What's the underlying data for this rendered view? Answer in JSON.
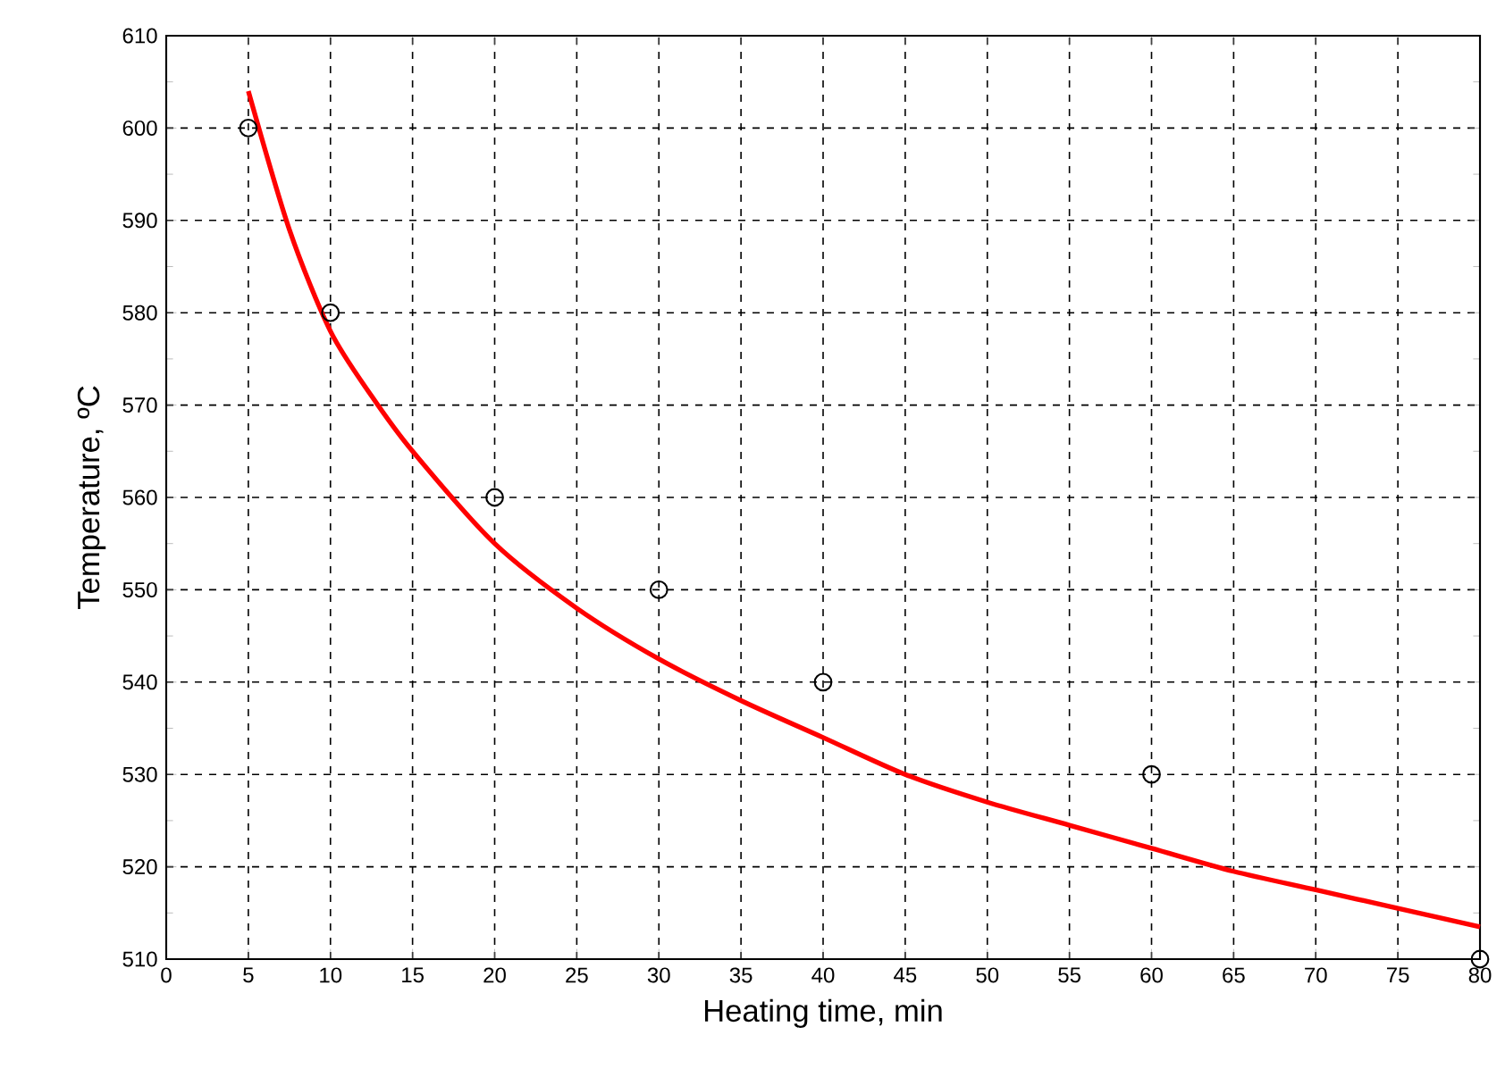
{
  "chart_data": {
    "type": "scatter",
    "xlabel": "Heating time, min",
    "ylabel": "Temperature, ºC",
    "xlim": [
      0,
      80
    ],
    "ylim": [
      510,
      610
    ],
    "xticks": [
      0,
      5,
      10,
      15,
      20,
      25,
      30,
      35,
      40,
      45,
      50,
      55,
      60,
      65,
      70,
      75,
      80
    ],
    "yticks": [
      510,
      520,
      530,
      540,
      550,
      560,
      570,
      580,
      590,
      600,
      610
    ],
    "grid": true,
    "series": [
      {
        "color": "#000000",
        "marker": "circle",
        "x": [
          5,
          10,
          20,
          30,
          40,
          60,
          80
        ],
        "values": [
          600,
          580,
          560,
          550,
          540,
          530,
          510
        ]
      },
      {
        "type": "line",
        "color": "#ff0000",
        "marker": "none",
        "line_style": "solid",
        "x": [
          5,
          7.5,
          10,
          12.5,
          15,
          20,
          25,
          30,
          35,
          40,
          45,
          50,
          55,
          60,
          65,
          70,
          75,
          80
        ],
        "values": [
          604,
          589,
          578,
          571,
          565,
          555,
          548,
          542.5,
          538,
          534,
          530,
          527,
          524.5,
          522,
          519.5,
          517.5,
          515.5,
          513.5
        ]
      }
    ]
  }
}
